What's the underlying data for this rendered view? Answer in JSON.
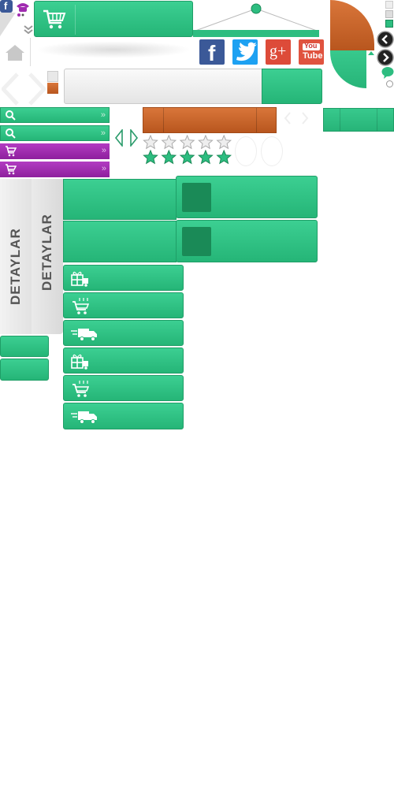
{
  "social": {
    "facebook": "f",
    "googleplus": "g+",
    "youtube_top": "You",
    "youtube_bottom": "Tube"
  },
  "details_label_1": "DETAYLAR",
  "details_label_2": "DETAYLAR",
  "ratings": {
    "empty_stars": 5,
    "filled_stars": 5
  },
  "icons": {
    "cart": "cart-icon",
    "search": "search-icon",
    "home": "home-icon",
    "phone": "phone-icon",
    "gift_truck": "gift-truck-icon",
    "cart_add": "cart-add-icon",
    "delivery_truck": "delivery-truck-icon",
    "chat": "chat-icon"
  },
  "colors": {
    "green": "#2dbd80",
    "dark_green": "#1a8a57",
    "purple": "#a02bb0",
    "orange": "#c9642a",
    "facebook": "#3b5998",
    "twitter": "#1da1f2",
    "googleplus": "#dd4b39",
    "youtube": "#e0533f"
  }
}
